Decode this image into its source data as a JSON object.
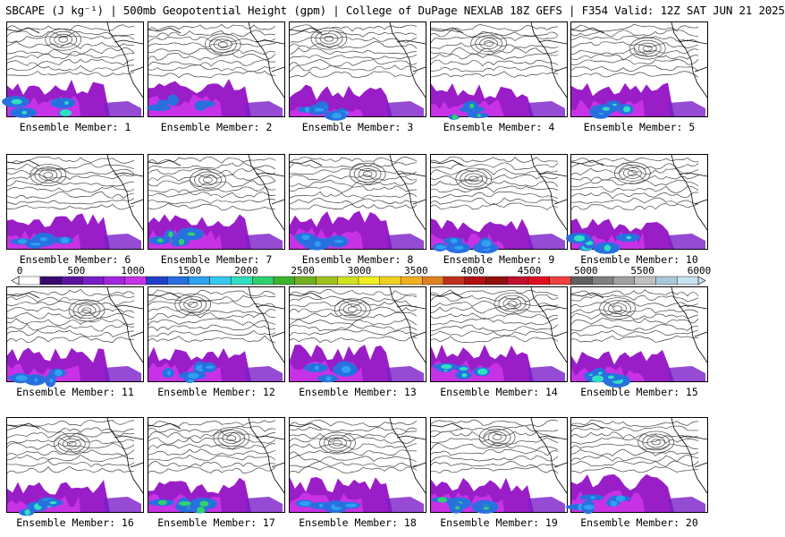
{
  "header": {
    "title": "SBCAPE (J kg⁻¹) | 500mb Geopotential Height (gpm) | College of DuPage NEXLAB 18Z GEFS | F354 Valid: 12Z SAT JUN 21 2025"
  },
  "colorbar": {
    "ticks": [
      "0",
      "500",
      "1000",
      "1500",
      "2000",
      "2500",
      "3000",
      "3500",
      "4000",
      "4500",
      "5000",
      "5500",
      "6000"
    ],
    "colors": [
      "#ffffff",
      "#3a0a6e",
      "#5a14a0",
      "#7a1ec8",
      "#a028dc",
      "#c832e6",
      "#2040c8",
      "#2870e0",
      "#30a0f0",
      "#38c8f0",
      "#30e0c0",
      "#30d070",
      "#40b030",
      "#70b020",
      "#a0c020",
      "#d0e020",
      "#f0f020",
      "#f0d020",
      "#f0b020",
      "#e08020",
      "#c03020",
      "#b01010",
      "#901010",
      "#c01030",
      "#e01020",
      "#f04040",
      "#606060",
      "#808080",
      "#a0a0a0",
      "#c0c0c0",
      "#a8c8d8",
      "#c8e0f0"
    ],
    "accent": "#000000"
  },
  "panels": [
    {
      "label": "Ensemble Member: 1",
      "max": "#30e0c0"
    },
    {
      "label": "Ensemble Member: 2",
      "max": "#2870e0"
    },
    {
      "label": "Ensemble Member: 3",
      "max": "#30a0f0"
    },
    {
      "label": "Ensemble Member: 4",
      "max": "#30d070"
    },
    {
      "label": "Ensemble Member: 5",
      "max": "#30e0c0"
    },
    {
      "label": "Ensemble Member: 6",
      "max": "#30a0f0"
    },
    {
      "label": "Ensemble Member: 7",
      "max": "#30d070"
    },
    {
      "label": "Ensemble Member: 8",
      "max": "#30a0f0"
    },
    {
      "label": "Ensemble Member: 9",
      "max": "#30a0f0"
    },
    {
      "label": "Ensemble Member: 10",
      "max": "#30e0c0"
    },
    {
      "label": "Ensemble Member: 11",
      "max": "#30a0f0"
    },
    {
      "label": "Ensemble Member: 12",
      "max": "#30a0f0"
    },
    {
      "label": "Ensemble Member: 13",
      "max": "#30a0f0"
    },
    {
      "label": "Ensemble Member: 14",
      "max": "#30e0c0"
    },
    {
      "label": "Ensemble Member: 15",
      "max": "#30e0c0"
    },
    {
      "label": "Ensemble Member: 16",
      "max": "#30e0c0"
    },
    {
      "label": "Ensemble Member: 17",
      "max": "#30d070"
    },
    {
      "label": "Ensemble Member: 18",
      "max": "#30a0f0"
    },
    {
      "label": "Ensemble Member: 19",
      "max": "#30d070"
    },
    {
      "label": "Ensemble Member: 20",
      "max": "#30a0f0"
    }
  ]
}
